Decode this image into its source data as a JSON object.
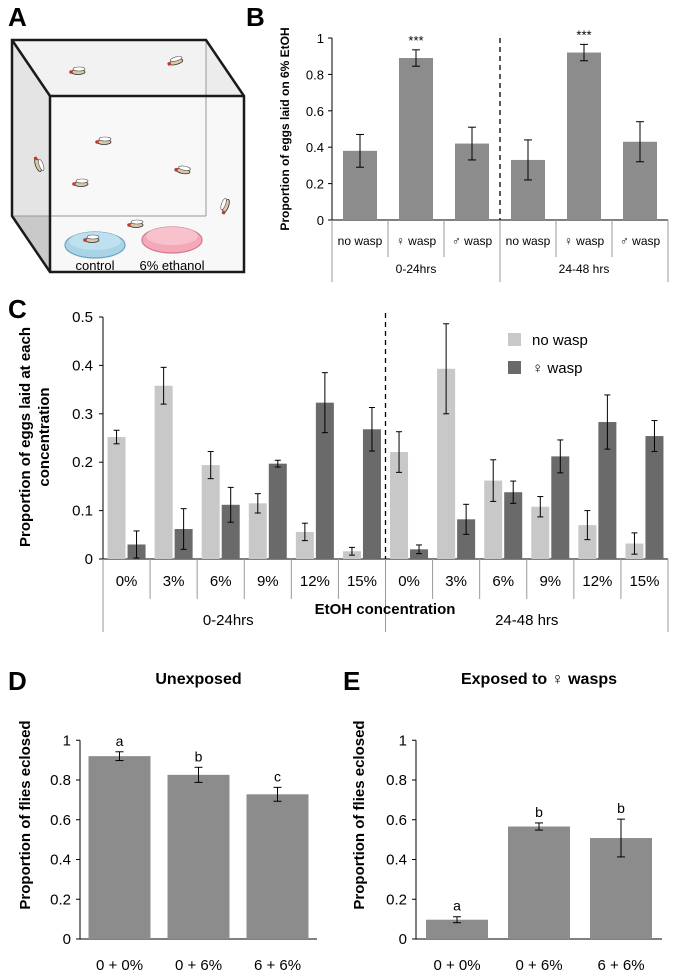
{
  "panel_letters": {
    "a": "A",
    "b": "B",
    "c": "C",
    "d": "D",
    "e": "E"
  },
  "panel_a": {
    "dish_control_label": "control",
    "dish_ethanol_label": "6% ethanol",
    "colors": {
      "control_dish": "#a8d4e6",
      "ethanol_dish": "#f4a8b8"
    }
  },
  "colors": {
    "bar": "#8c8c8c",
    "bar_light": "#c8c8c8",
    "bar_dark": "#6a6a6a",
    "axis": "#000000"
  },
  "chart_data": [
    {
      "panel": "B",
      "type": "bar",
      "ylabel": "Proportion of eggs laid on 6% EtOH",
      "ylim": [
        0,
        1
      ],
      "yticks": [
        "0",
        "0.2",
        "0.4",
        "0.6",
        "0.8",
        "1"
      ],
      "categories": [
        "no wasp",
        "♀ wasp",
        "♂ wasp",
        "no wasp",
        "♀ wasp",
        "♂ wasp"
      ],
      "groups": [
        "0-24hrs",
        "24-48 hrs"
      ],
      "values": [
        0.38,
        0.89,
        0.42,
        0.33,
        0.92,
        0.43
      ],
      "errors": [
        0.09,
        0.045,
        0.09,
        0.11,
        0.045,
        0.11
      ],
      "annotations": [
        "",
        "***",
        "",
        "",
        "***",
        ""
      ]
    },
    {
      "panel": "C",
      "type": "bar",
      "ylabel_lines": [
        "Proportion of eggs laid at each",
        "concentration"
      ],
      "xlabel": "EtOH concentration",
      "ylim": [
        0,
        0.5
      ],
      "yticks": [
        "0",
        "0.1",
        "0.2",
        "0.3",
        "0.4",
        "0.5"
      ],
      "categories": [
        "0%",
        "3%",
        "6%",
        "9%",
        "12%",
        "15%",
        "0%",
        "3%",
        "6%",
        "9%",
        "12%",
        "15%"
      ],
      "groups": [
        "0-24hrs",
        "24-48 hrs"
      ],
      "legend_position": "top-right",
      "series": [
        {
          "name": "no wasp",
          "values": [
            0.252,
            0.358,
            0.194,
            0.115,
            0.056,
            0.016,
            0.221,
            0.393,
            0.162,
            0.108,
            0.07,
            0.032
          ],
          "errors": [
            0.014,
            0.038,
            0.028,
            0.02,
            0.018,
            0.008,
            0.042,
            0.093,
            0.043,
            0.021,
            0.03,
            0.022
          ]
        },
        {
          "name": "♀ wasp",
          "values": [
            0.03,
            0.062,
            0.112,
            0.197,
            0.323,
            0.268,
            0.02,
            0.082,
            0.138,
            0.212,
            0.283,
            0.254
          ],
          "errors": [
            0.028,
            0.042,
            0.036,
            0.007,
            0.062,
            0.045,
            0.009,
            0.031,
            0.023,
            0.034,
            0.056,
            0.032
          ]
        }
      ]
    },
    {
      "panel": "D",
      "type": "bar",
      "title": "Unexposed",
      "ylabel": "Proportion of flies eclosed",
      "ylim": [
        0,
        1
      ],
      "yticks": [
        "0",
        "0.2",
        "0.4",
        "0.6",
        "0.8",
        "1"
      ],
      "categories": [
        "0 + 0%",
        "0 + 6%",
        "6 + 6%"
      ],
      "values": [
        0.92,
        0.826,
        0.728
      ],
      "errors": [
        0.022,
        0.038,
        0.035
      ],
      "letters": [
        "a",
        "b",
        "c"
      ]
    },
    {
      "panel": "E",
      "type": "bar",
      "title": "Exposed to ♀ wasps",
      "ylabel": "Proportion of flies eclosed",
      "ylim": [
        0,
        1
      ],
      "yticks": [
        "0",
        "0.2",
        "0.4",
        "0.6",
        "0.8",
        "1"
      ],
      "categories": [
        "0 + 0%",
        "0 + 6%",
        "6 + 6%"
      ],
      "values": [
        0.097,
        0.566,
        0.508
      ],
      "errors": [
        0.015,
        0.018,
        0.095
      ],
      "letters": [
        "a",
        "b",
        "b"
      ]
    }
  ]
}
